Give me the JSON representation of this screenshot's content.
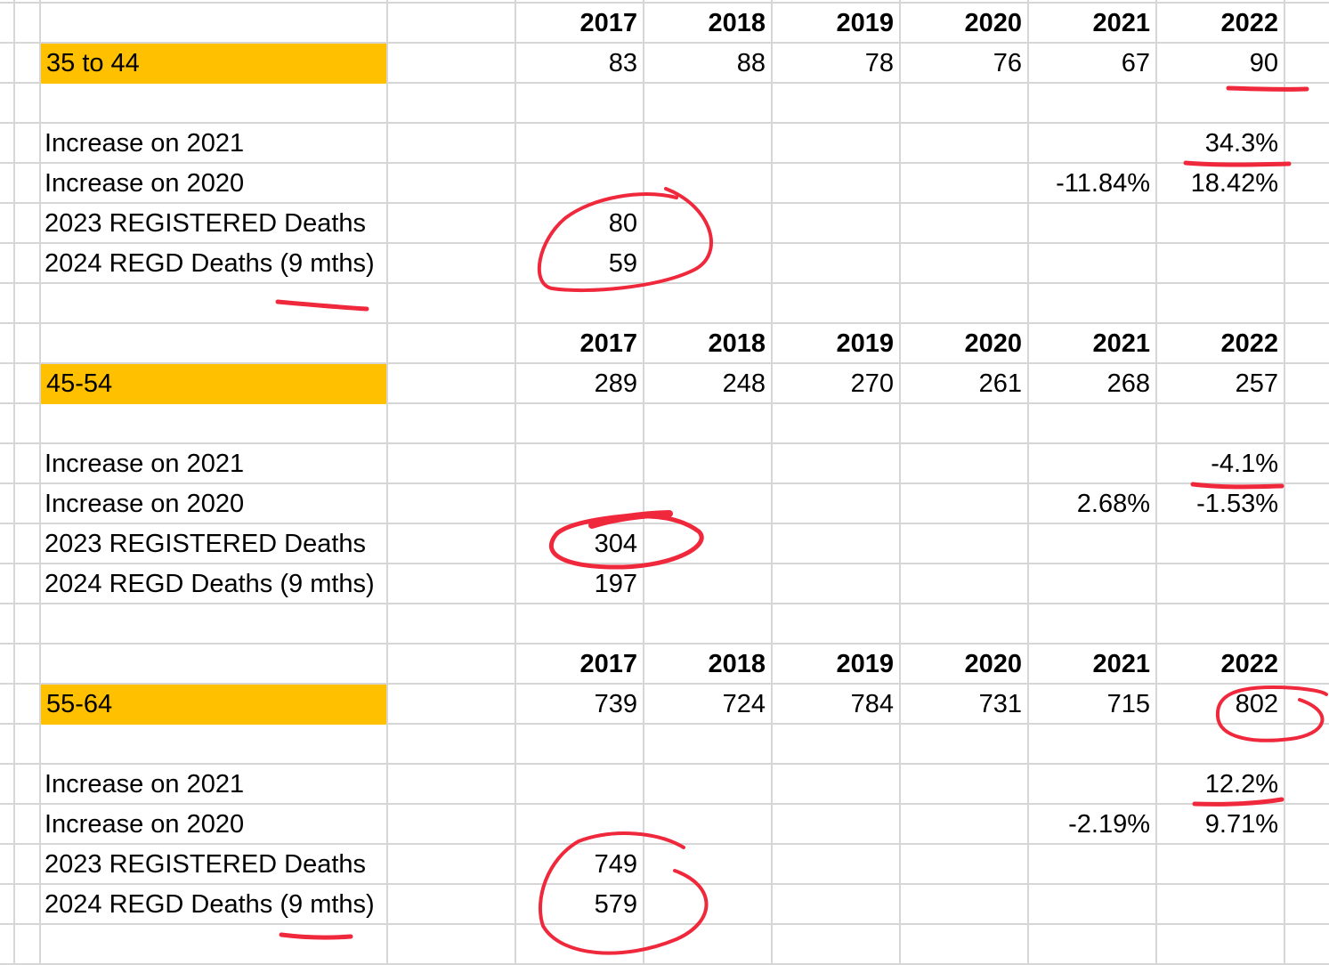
{
  "sheet": {
    "years": [
      "2017",
      "2018",
      "2019",
      "2020",
      "2021",
      "2022"
    ],
    "label_fill_color": "#ffc000",
    "annotation_color": "#f0283c",
    "groups": [
      {
        "label": "35 to 44",
        "values": [
          "83",
          "88",
          "78",
          "76",
          "67",
          "90"
        ],
        "rows": [
          {
            "label": "Increase on 2021",
            "cells": [
              "",
              "",
              "",
              "",
              "",
              "34.3%"
            ]
          },
          {
            "label": "Increase on 2020",
            "cells": [
              "",
              "",
              "",
              "",
              "-11.84%",
              "18.42%"
            ]
          },
          {
            "label": "2023 REGISTERED Deaths",
            "cells": [
              "80",
              "",
              "",
              "",
              "",
              ""
            ]
          },
          {
            "label": "2024 REGD Deaths (9 mths)",
            "cells": [
              "59",
              "",
              "",
              "",
              "",
              ""
            ]
          }
        ]
      },
      {
        "label": "45-54",
        "values": [
          "289",
          "248",
          "270",
          "261",
          "268",
          "257"
        ],
        "rows": [
          {
            "label": "Increase on 2021",
            "cells": [
              "",
              "",
              "",
              "",
              "",
              "-4.1%"
            ]
          },
          {
            "label": "Increase on 2020",
            "cells": [
              "",
              "",
              "",
              "",
              "2.68%",
              "-1.53%"
            ]
          },
          {
            "label": "2023 REGISTERED Deaths",
            "cells": [
              "304",
              "",
              "",
              "",
              "",
              ""
            ]
          },
          {
            "label": "2024 REGD Deaths (9 mths)",
            "cells": [
              "197",
              "",
              "",
              "",
              "",
              ""
            ]
          }
        ]
      },
      {
        "label": "55-64",
        "values": [
          "739",
          "724",
          "784",
          "731",
          "715",
          "802"
        ],
        "rows": [
          {
            "label": "Increase on 2021",
            "cells": [
              "",
              "",
              "",
              "",
              "",
              "12.2%"
            ]
          },
          {
            "label": "Increase on 2020",
            "cells": [
              "",
              "",
              "",
              "",
              "-2.19%",
              "9.71%"
            ]
          },
          {
            "label": "2023 REGISTERED Deaths",
            "cells": [
              "749",
              "",
              "",
              "",
              "",
              ""
            ]
          },
          {
            "label": "2024 REGD Deaths (9 mths)",
            "cells": [
              "579",
              "",
              "",
              "",
              "",
              ""
            ]
          }
        ]
      }
    ]
  }
}
